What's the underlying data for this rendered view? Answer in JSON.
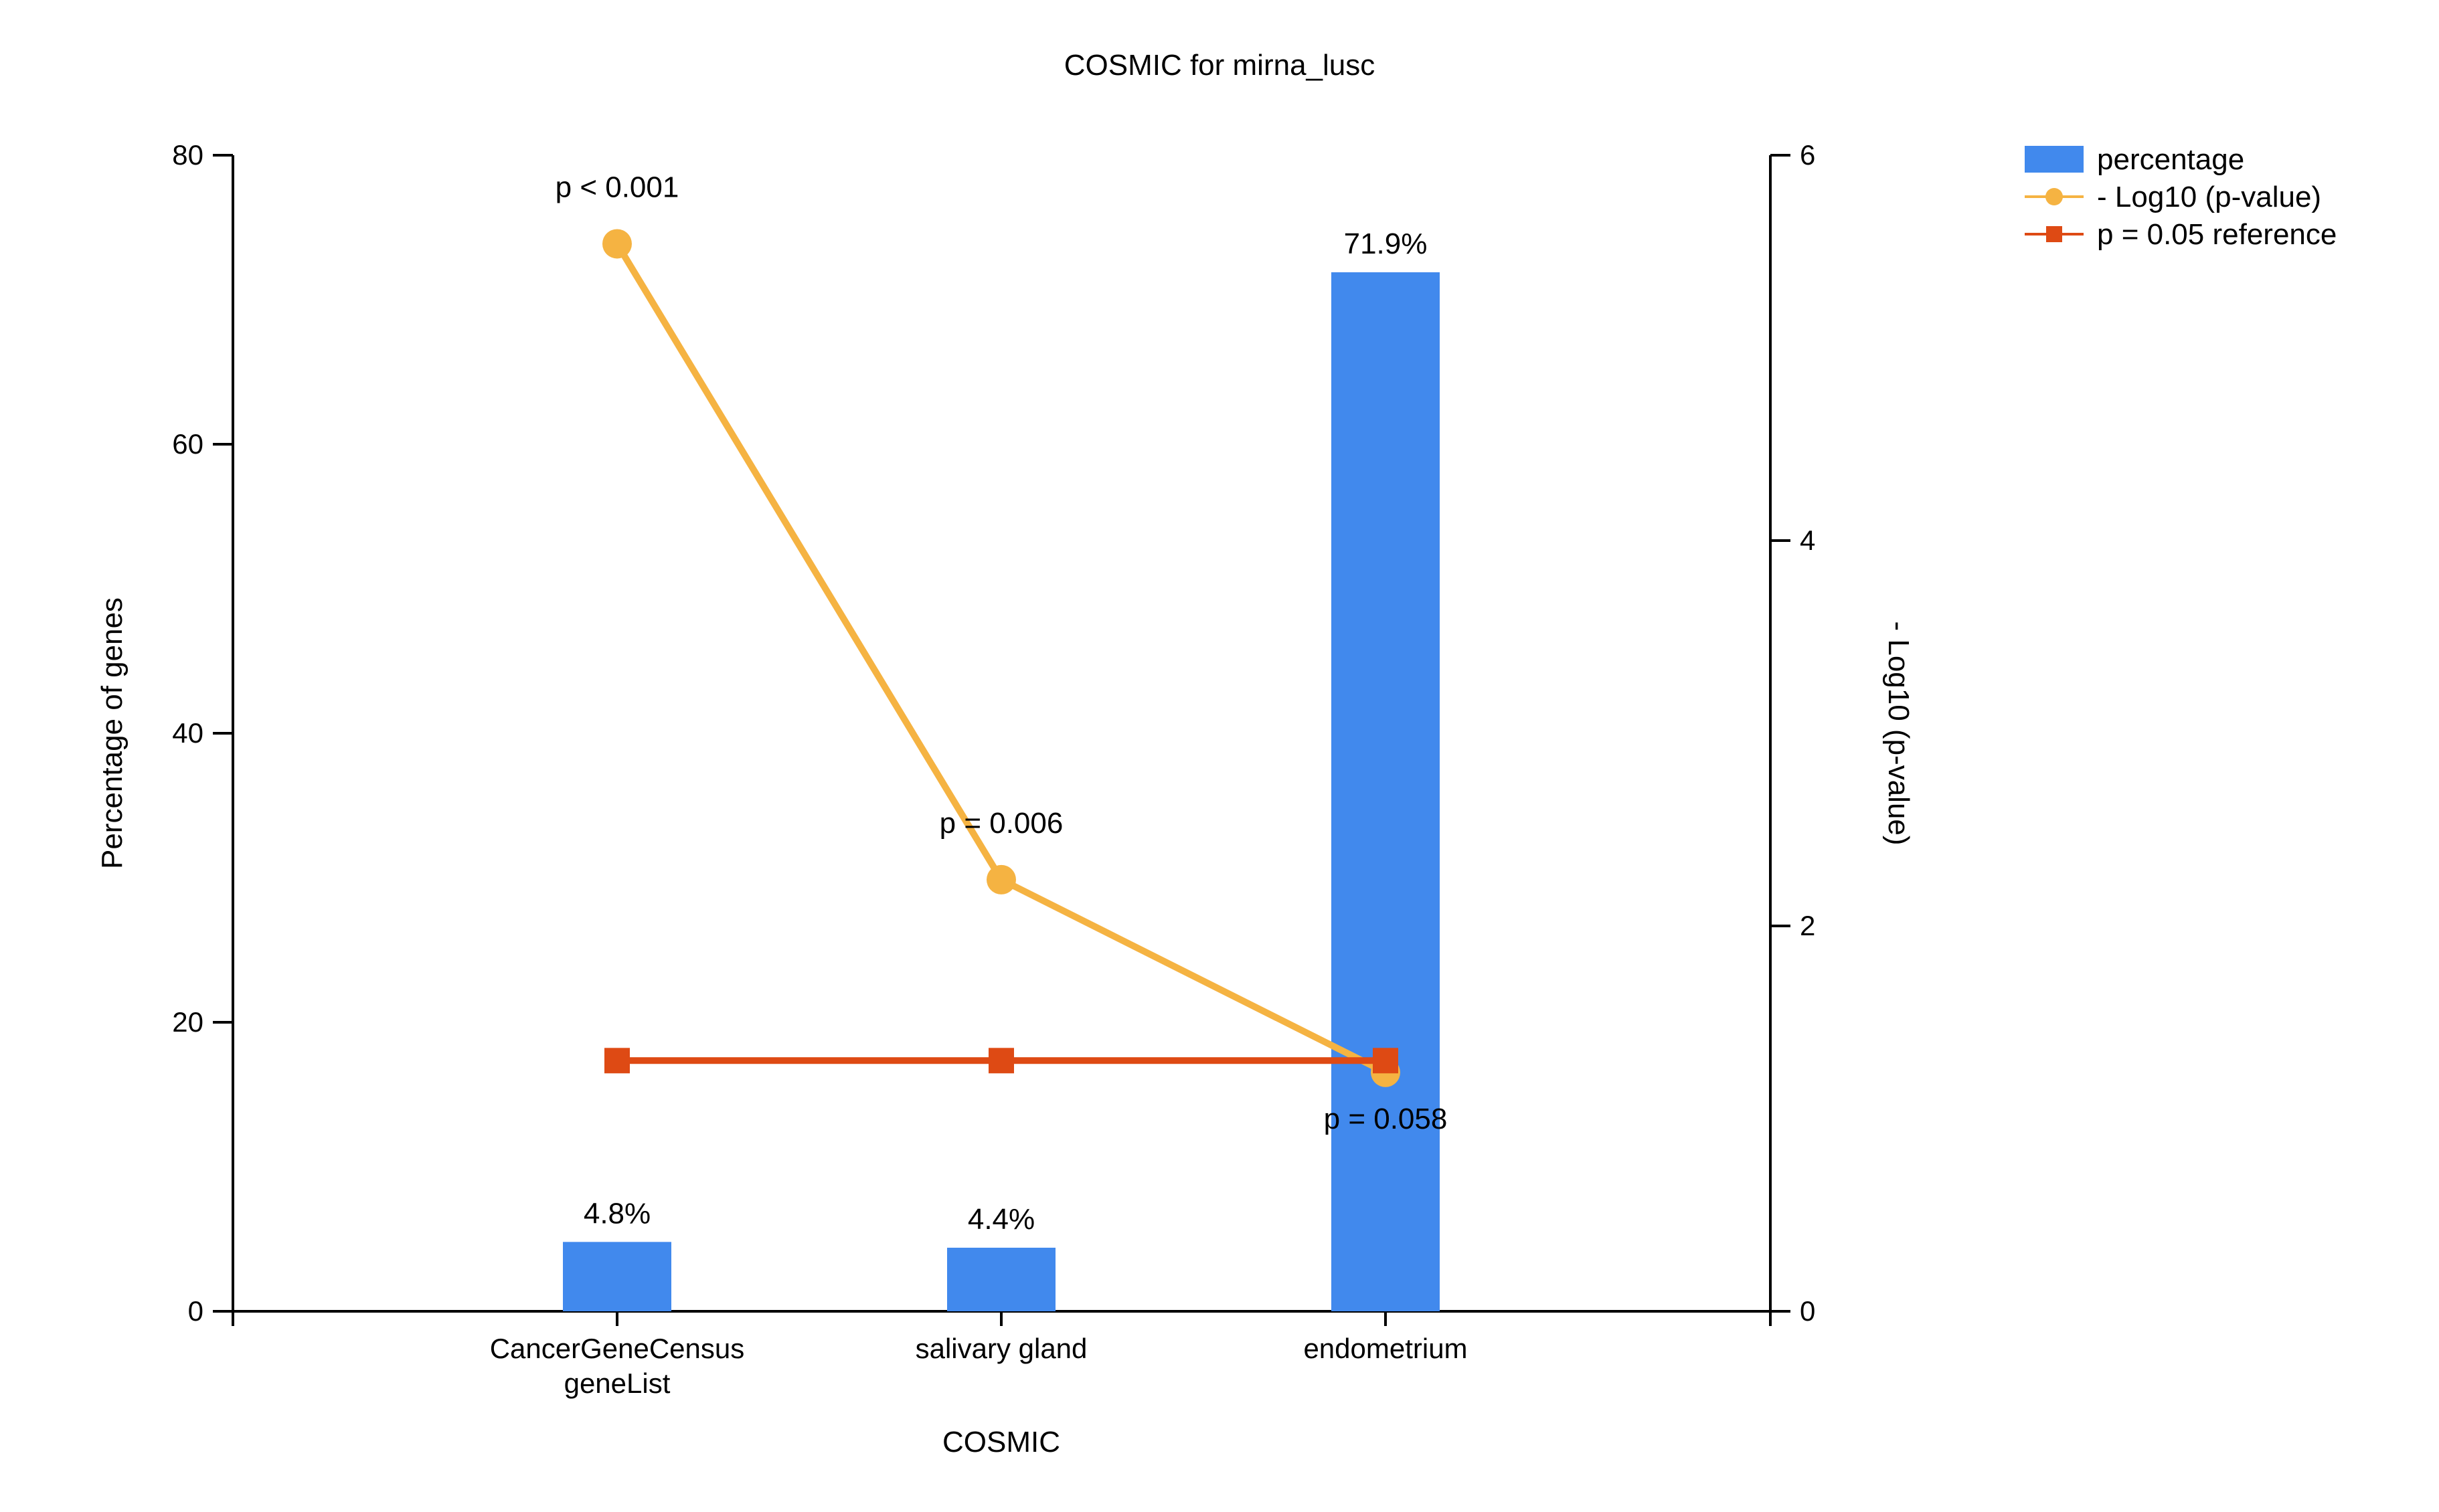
{
  "chart_data": {
    "type": "bar",
    "title": "COSMIC for mirna_lusc",
    "xlabel": "COSMIC",
    "ylabel": "Percentage of genes",
    "y2label": "- Log10 (p-value)",
    "categories": [
      [
        "CancerGeneCensus",
        "geneList"
      ],
      [
        "salivary gland"
      ],
      [
        "endometrium"
      ]
    ],
    "ylim": [
      0,
      80
    ],
    "y_ticks": [
      0,
      20,
      40,
      60,
      80
    ],
    "y2lim": [
      0,
      6
    ],
    "y2_ticks": [
      0,
      2,
      4,
      6
    ],
    "series": [
      {
        "name": "percentage",
        "kind": "bar",
        "axis": "left",
        "color": "#4189ED",
        "values": [
          4.8,
          4.4,
          71.9
        ],
        "labels": [
          "4.8%",
          "4.4%",
          "71.9%"
        ]
      },
      {
        "name": "- Log10 (p-value)",
        "kind": "line",
        "marker": "circle",
        "axis": "right",
        "color": "#F5B342",
        "values": [
          5.54,
          2.24,
          1.24
        ],
        "labels": [
          "p < 0.001",
          "p = 0.006",
          "p = 0.058"
        ]
      },
      {
        "name": "p = 0.05 reference",
        "kind": "line",
        "marker": "square",
        "axis": "right",
        "color": "#DE4A14",
        "values": [
          1.301,
          1.301,
          1.301
        ]
      }
    ],
    "legend_position": "top-right",
    "grid": false
  }
}
